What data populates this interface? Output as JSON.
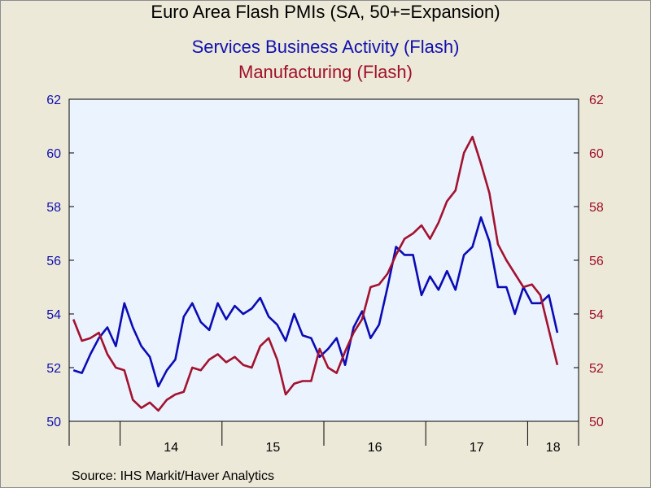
{
  "header": {
    "title": "Euro Area Flash PMIs (SA, 50+=Expansion)",
    "series1_title": "Services Business Activity (Flash)",
    "series2_title": "Manufacturing (Flash)"
  },
  "footer": {
    "source": "Source:  IHS Markit/Haver Analytics"
  },
  "colors": {
    "services": "#0b0bb5",
    "manufacturing": "#a3122f",
    "plot_background": "#eaf3fe",
    "page_background": "#ece9d8",
    "left_axis": "#1010b0",
    "right_axis": "#a0102a"
  },
  "chart_data": {
    "type": "line",
    "grid": false,
    "x_unit": "month",
    "x_start": "2013-07",
    "x_end": "2018-06",
    "year_labels": [
      "14",
      "15",
      "16",
      "17",
      "18"
    ],
    "y_left": {
      "ylim": [
        50,
        62
      ],
      "ticks": [
        50,
        52,
        54,
        56,
        58,
        60,
        62
      ]
    },
    "y_right": {
      "ylim": [
        50,
        62
      ],
      "ticks": [
        50,
        52,
        54,
        56,
        58,
        60,
        62
      ]
    },
    "series": [
      {
        "name": "Services Business Activity (Flash)",
        "axis": "left",
        "start": "2013-07",
        "values": [
          51.9,
          51.8,
          52.5,
          53.1,
          53.5,
          52.8,
          54.4,
          53.5,
          52.8,
          52.4,
          51.3,
          51.9,
          52.3,
          53.9,
          54.4,
          53.7,
          53.4,
          54.4,
          53.8,
          54.3,
          54.0,
          54.2,
          54.6,
          53.9,
          53.6,
          53.0,
          54.0,
          53.2,
          53.1,
          52.4,
          52.7,
          53.1,
          52.1,
          53.5,
          54.1,
          53.1,
          53.6,
          55.0,
          56.5,
          56.2,
          56.2,
          54.7,
          55.4,
          54.9,
          55.6,
          54.9,
          56.2,
          56.5,
          57.6,
          56.7,
          55.0,
          55.0,
          54.0,
          55.0,
          54.4,
          54.4,
          54.7,
          53.3
        ]
      },
      {
        "name": "Manufacturing (Flash)",
        "axis": "right",
        "start": "2013-07",
        "values": [
          53.8,
          53.0,
          53.1,
          53.3,
          52.5,
          52.0,
          51.9,
          50.8,
          50.5,
          50.7,
          50.4,
          50.8,
          51.0,
          51.1,
          52.0,
          51.9,
          52.3,
          52.5,
          52.2,
          52.4,
          52.1,
          52.0,
          52.8,
          53.1,
          52.3,
          51.0,
          51.4,
          51.5,
          51.5,
          52.7,
          52.0,
          51.8,
          52.6,
          53.3,
          53.8,
          55.0,
          55.1,
          55.5,
          56.2,
          56.8,
          57.0,
          57.3,
          56.8,
          57.4,
          58.2,
          58.6,
          60.0,
          60.6,
          59.6,
          58.5,
          56.6,
          56.0,
          55.5,
          55.0,
          55.1,
          54.7,
          53.4,
          52.1
        ]
      }
    ],
    "source": "IHS Markit/Haver Analytics"
  }
}
